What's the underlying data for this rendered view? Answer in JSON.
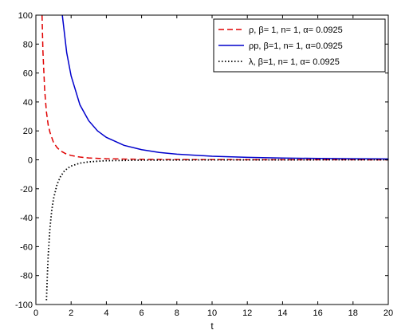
{
  "chart_data": {
    "type": "line",
    "title": "",
    "xlabel": "t",
    "ylabel": "",
    "xlim": [
      0,
      20
    ],
    "ylim": [
      -100,
      100
    ],
    "grid": false,
    "legend_position": "top-right",
    "x_ticks": [
      0,
      2,
      4,
      6,
      8,
      10,
      12,
      14,
      16,
      18,
      20
    ],
    "y_ticks": [
      -100,
      -80,
      -60,
      -40,
      -20,
      0,
      20,
      40,
      60,
      80,
      100
    ],
    "series": [
      {
        "name": "ρ, β= 1, n= 1, α= 0.0925",
        "color": "#e00000",
        "style": "dashed",
        "x": [
          0.35,
          0.4,
          0.5,
          0.6,
          0.7,
          0.8,
          1.0,
          1.2,
          1.4,
          1.7,
          2.0,
          2.5,
          3.0,
          4.0,
          6.0,
          8.0,
          12.0,
          16.0,
          20.0
        ],
        "y": [
          100,
          75,
          48,
          33,
          24,
          19,
          12,
          8.5,
          6.2,
          4.2,
          3.0,
          1.9,
          1.3,
          0.75,
          0.33,
          0.19,
          0.08,
          0.05,
          0.03
        ]
      },
      {
        "name": "ρp, β=1, n= 1, α=0.0925",
        "color": "#0000cc",
        "style": "solid",
        "x": [
          1.5,
          1.75,
          2.0,
          2.5,
          3.0,
          3.5,
          4.0,
          5.0,
          6.0,
          7.0,
          8.0,
          10.0,
          12.0,
          14.0,
          16.0,
          18.0,
          20.0
        ],
        "y": [
          100,
          74,
          58,
          38,
          27,
          20,
          15.5,
          10,
          7,
          5.1,
          3.9,
          2.5,
          1.7,
          1.25,
          0.95,
          0.75,
          0.6
        ]
      },
      {
        "name": "λ, β=1, n= 1,  α= 0.0925",
        "color": "#000000",
        "style": "dotted",
        "x": [
          0.6,
          0.65,
          0.7,
          0.8,
          0.9,
          1.0,
          1.2,
          1.4,
          1.6,
          1.8,
          2.0,
          2.5,
          3.0,
          4.0,
          6.0,
          10.0,
          20.0
        ],
        "y": [
          -97,
          -80,
          -66,
          -47,
          -35,
          -27,
          -17,
          -11.5,
          -8,
          -5.8,
          -4.3,
          -2.3,
          -1.4,
          -0.6,
          -0.2,
          -0.05,
          0
        ]
      }
    ]
  }
}
